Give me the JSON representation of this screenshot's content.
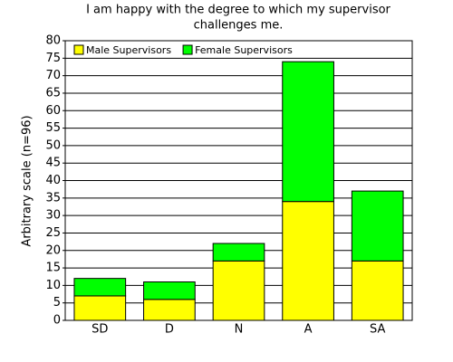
{
  "chart_data": {
    "type": "stacked_bar",
    "title": [
      "I am happy with the degree to which my supervisor",
      "challenges me."
    ],
    "ylabel": "Arbitrary scale (n=96)",
    "categories": [
      "SD",
      "D",
      "N",
      "A",
      "SA"
    ],
    "series": [
      {
        "name": "Male Supervisors",
        "color": "#ffff00",
        "values": [
          7,
          6,
          17,
          34,
          17
        ]
      },
      {
        "name": "Female Supervisors",
        "color": "#00ff00",
        "values": [
          5,
          5,
          5,
          40,
          20
        ]
      }
    ],
    "ylim": [
      0,
      80
    ],
    "yticks": [
      0,
      5,
      10,
      15,
      20,
      25,
      30,
      35,
      40,
      45,
      50,
      55,
      60,
      65,
      70,
      75,
      80
    ],
    "grid": true,
    "legend": "top-left"
  }
}
